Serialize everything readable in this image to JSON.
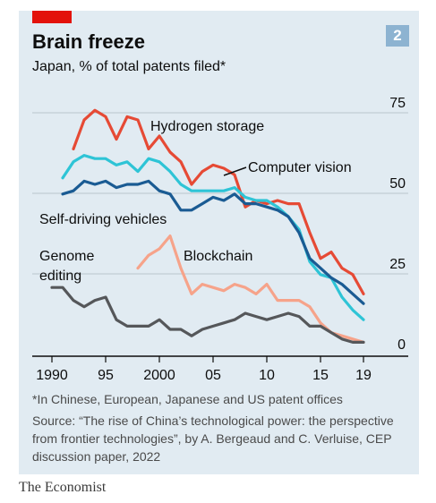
{
  "header": {
    "title": "Brain freeze",
    "subtitle": "Japan, % of total patents filed*",
    "badge": "2"
  },
  "footer": {
    "footnote": "*In Chinese, European, Japanese and US patent offices",
    "source": "Source: “The rise of China’s technological power: the perspective from frontier technologies”, by A. Bergeaud and C. Verluise, CEP discussion paper, 2022",
    "brand": "The Economist"
  },
  "colors": {
    "panel_bg": "#e1ebf2",
    "hydrogen": "#e64a35",
    "computer_vision": "#2ec4d6",
    "self_driving": "#1a5b93",
    "blockchain": "#f6a38a",
    "genome": "#55575a",
    "axis": "#0d0d0d",
    "grid": "#b9c4cc"
  },
  "chart_data": {
    "type": "line",
    "xlim": [
      1990,
      2019
    ],
    "ylim": [
      0,
      75
    ],
    "x_ticks": [
      "1990",
      "95",
      "2000",
      "05",
      "10",
      "15",
      "19"
    ],
    "x_tick_values": [
      1990,
      1995,
      2000,
      2005,
      2010,
      2015,
      2019
    ],
    "y_ticks": [
      "0",
      "25",
      "50",
      "75"
    ],
    "y_tick_values": [
      0,
      25,
      50,
      75
    ],
    "grid": true,
    "series": [
      {
        "name": "Hydrogen storage",
        "color": "#e64a35",
        "x": [
          1992,
          1993,
          1994,
          1995,
          1996,
          1997,
          1998,
          1999,
          2000,
          2001,
          2002,
          2003,
          2004,
          2005,
          2006,
          2007,
          2008,
          2009,
          2010,
          2011,
          2012,
          2013,
          2014,
          2015,
          2016,
          2017,
          2018,
          2019
        ],
        "y": [
          61,
          70,
          73,
          71,
          64,
          71,
          70,
          61,
          65,
          60,
          57,
          50,
          54,
          56,
          55,
          53,
          43,
          45,
          44,
          45,
          44,
          44,
          35,
          27,
          29,
          24,
          22,
          16
        ]
      },
      {
        "name": "Computer vision",
        "color": "#2ec4d6",
        "x": [
          1991,
          1992,
          1993,
          1994,
          1995,
          1996,
          1997,
          1998,
          1999,
          2000,
          2001,
          2002,
          2003,
          2004,
          2005,
          2006,
          2007,
          2008,
          2009,
          2010,
          2011,
          2012,
          2013,
          2014,
          2015,
          2016,
          2017,
          2018,
          2019
        ],
        "y": [
          52,
          57,
          59,
          58,
          58,
          56,
          57,
          54,
          58,
          57,
          54,
          50,
          48,
          48,
          48,
          48,
          49,
          46,
          45,
          45,
          43,
          40,
          36,
          26,
          22,
          21,
          15,
          11,
          8
        ]
      },
      {
        "name": "Self-driving vehicles",
        "color": "#1a5b93",
        "x": [
          1991,
          1992,
          1993,
          1994,
          1995,
          1996,
          1997,
          1998,
          1999,
          2000,
          2001,
          2002,
          2003,
          2004,
          2005,
          2006,
          2007,
          2008,
          2009,
          2010,
          2011,
          2012,
          2013,
          2014,
          2015,
          2016,
          2017,
          2018,
          2019
        ],
        "y": [
          47,
          48,
          51,
          50,
          51,
          49,
          50,
          50,
          51,
          48,
          47,
          42,
          42,
          44,
          46,
          45,
          47,
          44,
          44,
          43,
          42,
          40,
          35,
          27,
          24,
          21,
          19,
          16,
          13
        ]
      },
      {
        "name": "Blockchain",
        "color": "#f6a38a",
        "x": [
          1998,
          1999,
          2000,
          2001,
          2002,
          2003,
          2004,
          2005,
          2006,
          2007,
          2008,
          2009,
          2010,
          2011,
          2012,
          2013,
          2014,
          2015,
          2016,
          2017,
          2018,
          2019
        ],
        "y": [
          24,
          28,
          30,
          34,
          24,
          16,
          19,
          18,
          17,
          19,
          18,
          16,
          19,
          14,
          14,
          14,
          12,
          7,
          4,
          3,
          2,
          1
        ]
      },
      {
        "name": "Genome editing",
        "color": "#55575a",
        "x": [
          1990,
          1991,
          1992,
          1993,
          1994,
          1995,
          1996,
          1997,
          1998,
          1999,
          2000,
          2001,
          2002,
          2003,
          2004,
          2005,
          2006,
          2007,
          2008,
          2009,
          2010,
          2011,
          2012,
          2013,
          2014,
          2015,
          2016,
          2017,
          2018,
          2019
        ],
        "y": [
          18,
          18,
          14,
          12,
          14,
          15,
          8,
          6,
          6,
          6,
          8,
          5,
          5,
          3,
          5,
          6,
          7,
          8,
          10,
          9,
          8,
          9,
          10,
          9,
          6,
          6,
          4,
          2,
          1,
          1
        ]
      }
    ],
    "annotations": {
      "hydrogen_label": "Hydrogen storage",
      "cv_label": "Computer vision",
      "sdv_label": "Self-driving vehicles",
      "blockchain_label": "Blockchain",
      "genome_label_1": "Genome",
      "genome_label_2": "editing"
    }
  }
}
